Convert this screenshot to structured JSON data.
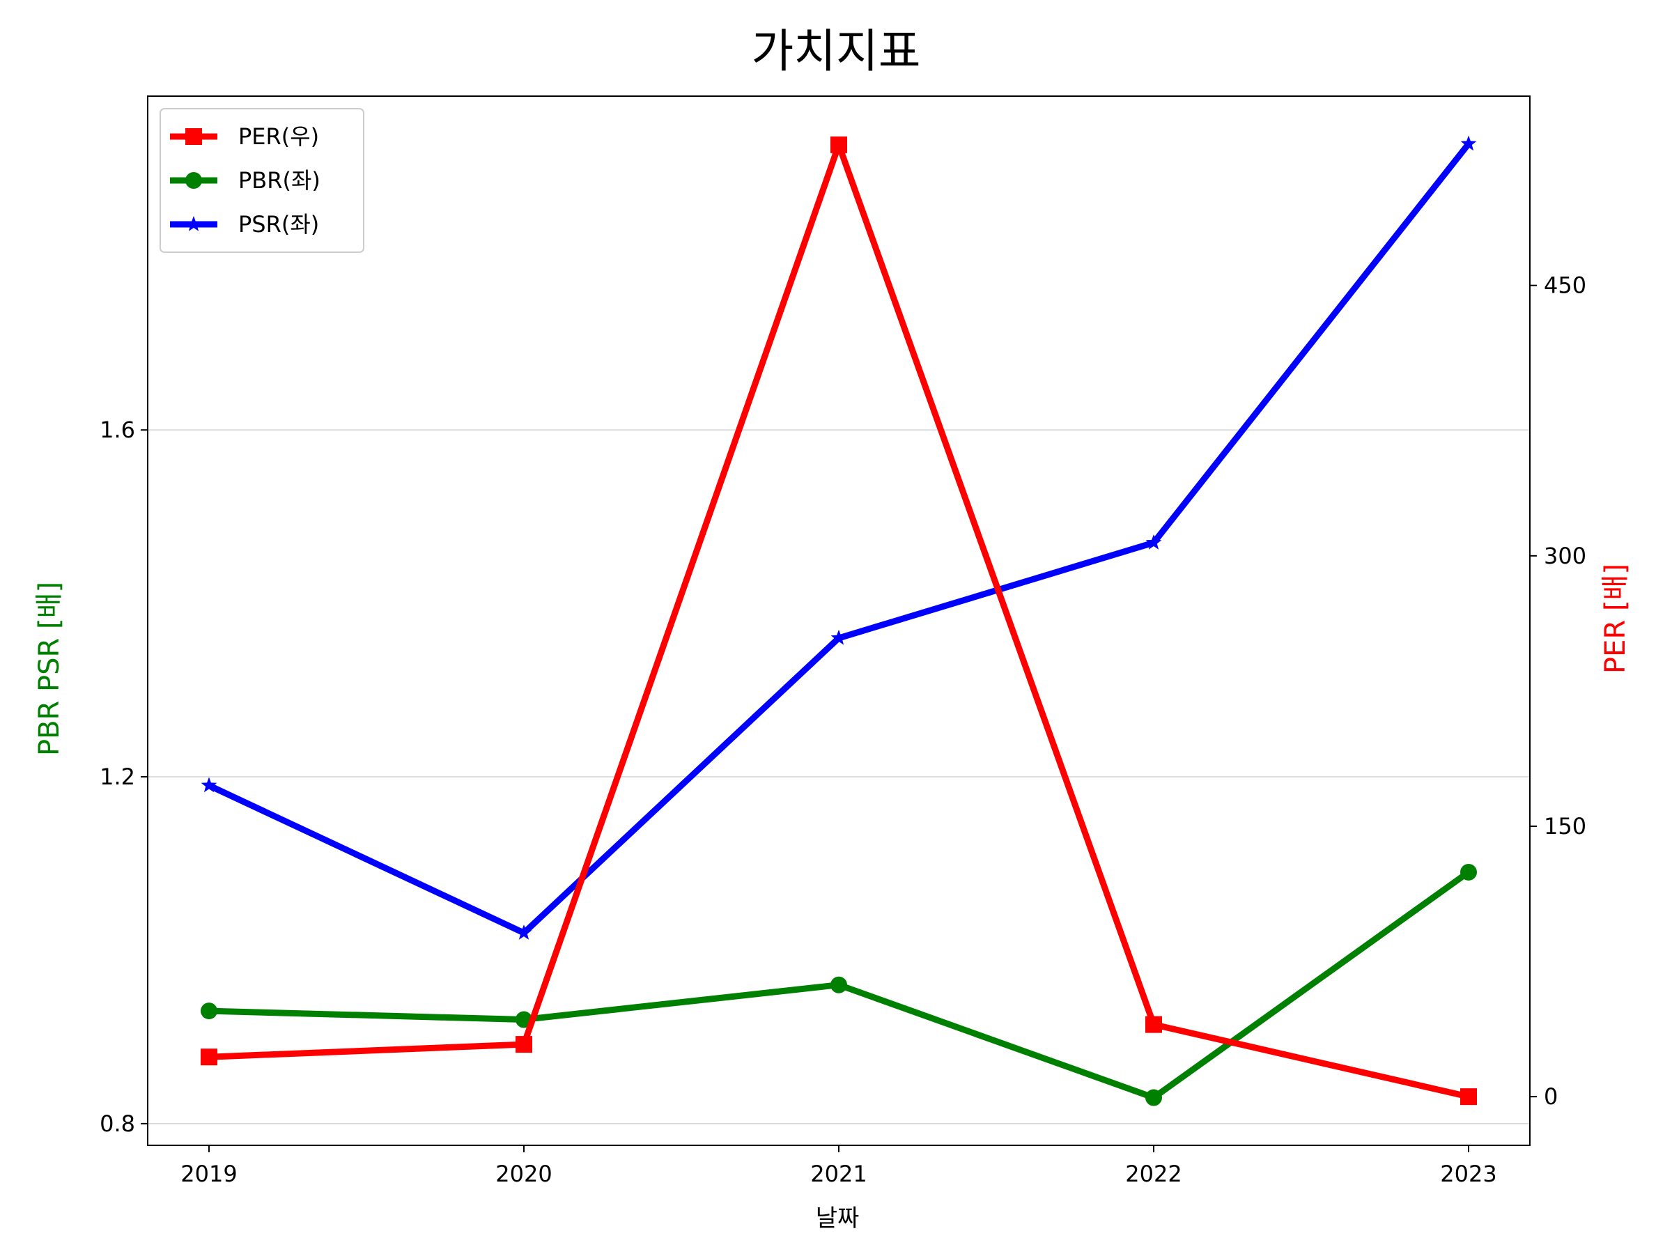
{
  "chart_data": {
    "type": "line",
    "title": "가치지표",
    "xlabel": "날짜",
    "ylabel_left": "PBR PSR [배]",
    "ylabel_right": "PER [배]",
    "categories": [
      "2019",
      "2020",
      "2021",
      "2022",
      "2023"
    ],
    "y_left": {
      "ylim": [
        0.775,
        1.985
      ],
      "ticks": [
        0.8,
        1.2,
        1.6
      ],
      "tick_labels": [
        "0.8",
        "1.2",
        "1.6"
      ],
      "grid": true
    },
    "y_right": {
      "ylim": [
        -27,
        555
      ],
      "ticks": [
        0,
        150,
        300,
        450
      ],
      "tick_labels": [
        "0",
        "150",
        "300",
        "450"
      ]
    },
    "series": [
      {
        "name": "PER(우)",
        "axis": "right",
        "color": "#ff0000",
        "marker": "square",
        "values": [
          22,
          29,
          528,
          40,
          0
        ]
      },
      {
        "name": "PBR(좌)",
        "axis": "left",
        "color": "#008000",
        "marker": "circle",
        "values": [
          0.93,
          0.92,
          0.96,
          0.83,
          1.09
        ]
      },
      {
        "name": "PSR(좌)",
        "axis": "left",
        "color": "#0000ff",
        "marker": "star",
        "values": [
          1.19,
          1.02,
          1.36,
          1.47,
          1.93
        ]
      }
    ],
    "legend": {
      "placement": "top-left"
    },
    "colors": {
      "left_axis_label": "#008000",
      "right_axis_label": "#ff0000",
      "grid": "#d3d3d3"
    }
  }
}
